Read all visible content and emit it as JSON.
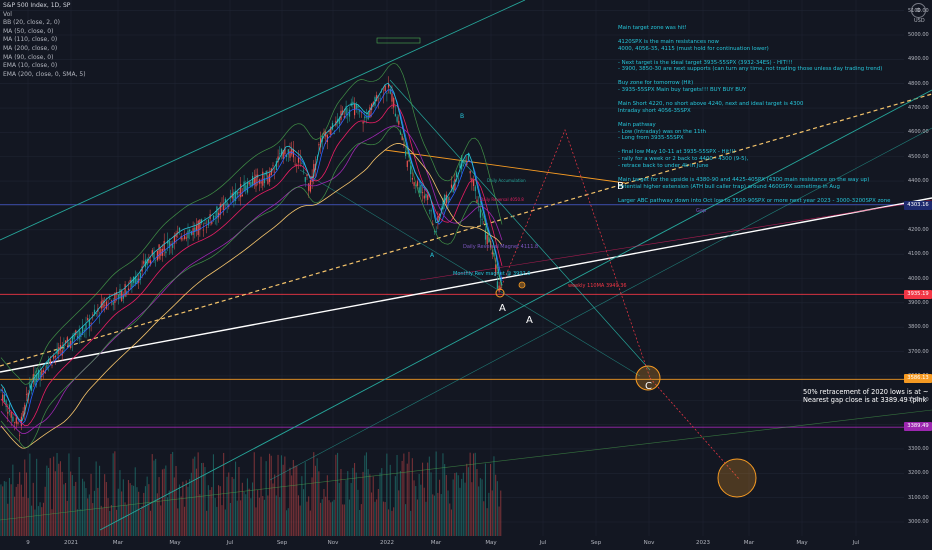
{
  "header": {
    "title": "S&P 500 Index, 1D, SP",
    "indicators": [
      "Vol",
      "BB (20, close, 2, 0)",
      "MA (50, close, 0)",
      "MA (110, close, 0)",
      "MA (200, close, 0)",
      "MA (90, close, 0)",
      "EMA (10, close, 0)",
      "EMA (200, close, 0, SMA, 5)"
    ]
  },
  "currency": "USD",
  "notes": [
    "Main target zone was hit!",
    "",
    "4120SPX is the main resistances now",
    "4000, 4056-35, 4115  (must hold for continuation lower)",
    "",
    "- Next target is the ideal target 3935-55SPX (3932-34ES) - HIT!!!",
    "- 3900, 3850-30 are next supports (can turn any time, not trading those unless day trading trend)",
    "",
    "Buy zone for tomorrow (Hit)",
    "- 3935-55SPX Main buy targets!!! BUY BUY BUY",
    "",
    "Main Short 4220, no short above 4240, next and ideal target is 4300",
    "Intraday short 4056-35SPX",
    "",
    "Main pathway",
    "- Low (Intraday) was on the 11th",
    "- Long from 3935-55SPX",
    "",
    "- final low May 10-11 at 3935-55SPX - Hit!!!",
    "- rally for a week or 2 back to 4400 - 4300 (9-5),",
    "- retrace back to under 4k in June",
    "",
    "Main target for the upside is 4380-90 and 4425-405PX (4300 main resistance on the way up)",
    "Potential higher extension (ATH bull caller trap) around 4600SPX sometime in Aug",
    "",
    "Larger ABC pathway down into Oct low to 3500-90SPX or more next year 2023 - 3000-3200SPX zone"
  ],
  "annotation": {
    "line1": "50% retracement of 2020 lows is at ~",
    "line2": "Nearest gap close is at 3389.49 (plnk"
  },
  "waves": {
    "a1": "A",
    "a2": "A",
    "b": "B",
    "c": "C",
    "a_small": "A",
    "b_small": "B"
  },
  "tags": {
    "monthly": "Monthly Rev magnet @ 3992.6",
    "weekly": "weekly 110MA 3949.36",
    "daily": "Daily Reversal Magnet 4111.8",
    "gap": "Gap",
    "small1": "Daily Accumulation",
    "small2": "Daily Reversal 4050.8"
  },
  "price_badges": [
    {
      "label": "4303.16",
      "color": "#1e2a6e"
    },
    {
      "label": "3935.19",
      "color": "#f23645"
    },
    {
      "label": "3586.13",
      "color": "#f59a23"
    },
    {
      "label": "3389.49",
      "color": "#9c27b0"
    }
  ],
  "settings_icon": "gear-icon",
  "chart_data": {
    "type": "candlestick",
    "title": "S&P 500 Index, 1D, SP",
    "y_ticks": [
      5100,
      5000,
      4900,
      4800,
      4700,
      4600,
      4500,
      4400,
      4300,
      4200,
      4100,
      4000,
      3900,
      3800,
      3700,
      3600,
      3500,
      3400,
      3300,
      3200,
      3100,
      3000
    ],
    "ylim": [
      2960,
      5140
    ],
    "x_ticks": [
      "9",
      "2021",
      "Mar",
      "May",
      "Jul",
      "Sep",
      "Nov",
      "2022",
      "Mar",
      "May",
      "Jul",
      "Sep",
      "Nov",
      "2023",
      "Mar",
      "May",
      "Jul"
    ],
    "horizontal_levels": [
      {
        "value": 4303.16,
        "color": "#3f51b5"
      },
      {
        "value": 3935.19,
        "color": "#f23645"
      },
      {
        "value": 3586.13,
        "color": "#f59a23"
      },
      {
        "value": 3389.49,
        "color": "#9c27b0"
      }
    ],
    "price_path": [
      [
        0,
        3550
      ],
      [
        10,
        3450
      ],
      [
        20,
        3380
      ],
      [
        30,
        3560
      ],
      [
        45,
        3640
      ],
      [
        60,
        3700
      ],
      [
        75,
        3760
      ],
      [
        90,
        3820
      ],
      [
        105,
        3900
      ],
      [
        120,
        3930
      ],
      [
        135,
        3990
      ],
      [
        150,
        4080
      ],
      [
        165,
        4130
      ],
      [
        180,
        4180
      ],
      [
        195,
        4200
      ],
      [
        210,
        4240
      ],
      [
        225,
        4300
      ],
      [
        240,
        4360
      ],
      [
        255,
        4400
      ],
      [
        270,
        4420
      ],
      [
        285,
        4530
      ],
      [
        300,
        4480
      ],
      [
        310,
        4370
      ],
      [
        320,
        4560
      ],
      [
        335,
        4620
      ],
      [
        345,
        4690
      ],
      [
        355,
        4700
      ],
      [
        365,
        4650
      ],
      [
        375,
        4720
      ],
      [
        385,
        4790
      ],
      [
        392,
        4750
      ],
      [
        398,
        4650
      ],
      [
        405,
        4520
      ],
      [
        412,
        4420
      ],
      [
        420,
        4370
      ],
      [
        428,
        4330
      ],
      [
        435,
        4180
      ],
      [
        442,
        4300
      ],
      [
        448,
        4330
      ],
      [
        455,
        4390
      ],
      [
        462,
        4480
      ],
      [
        468,
        4500
      ],
      [
        474,
        4380
      ],
      [
        480,
        4280
      ],
      [
        486,
        4170
      ],
      [
        492,
        4130
      ],
      [
        498,
        3970
      ],
      [
        502,
        3935
      ]
    ]
  }
}
